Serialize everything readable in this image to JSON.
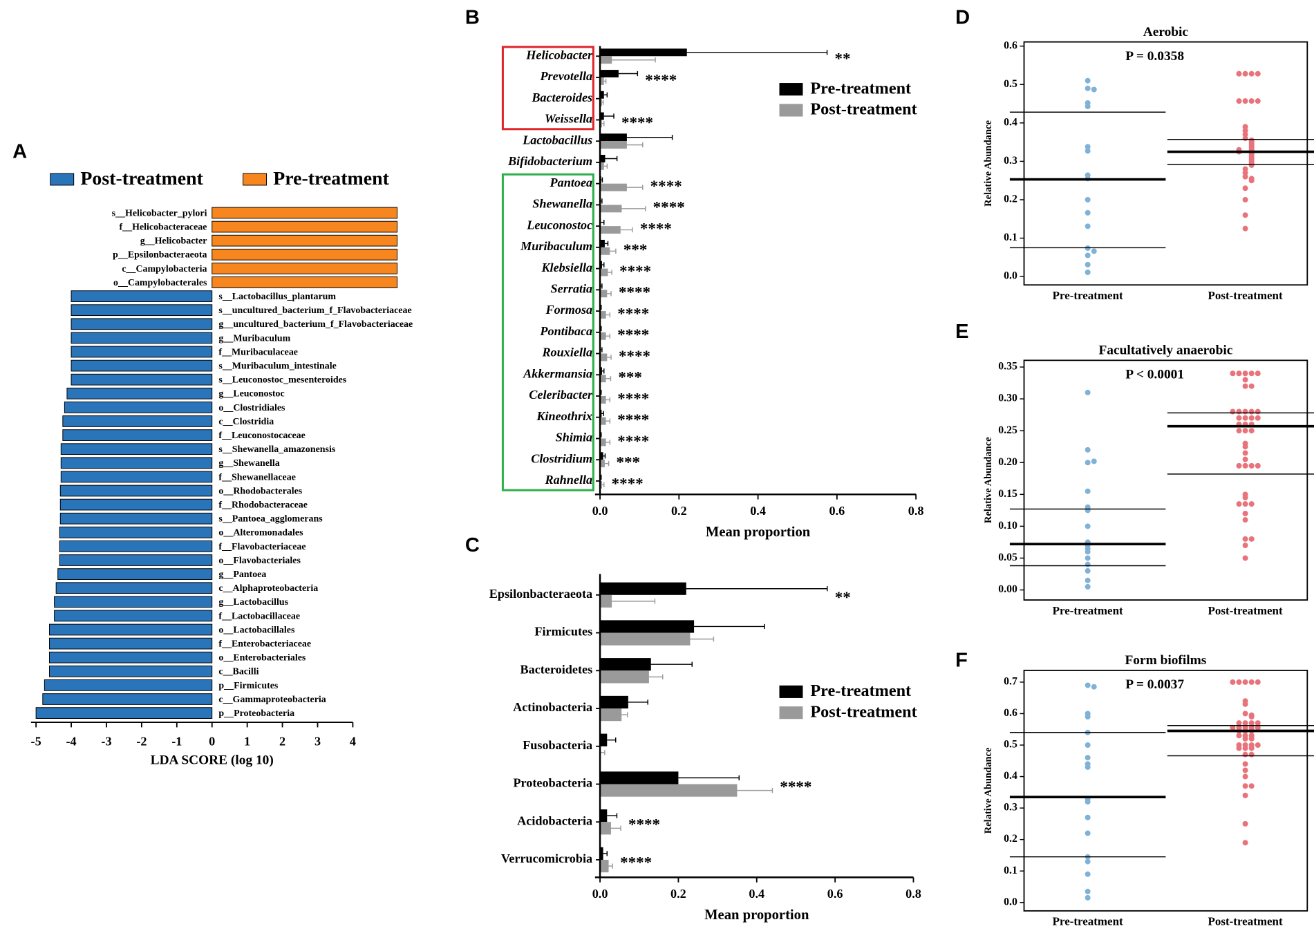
{
  "chart_data": [
    {
      "panel": "A",
      "type": "bar",
      "x_label": "LDA SCORE (log 10)",
      "categories": [
        "s__Helicobacter_pylori",
        "f__Helicobacteraceae",
        "g__Helicobacter",
        "p__Epsilonbacteraeota",
        "c__Campylobacteria",
        "o__Campylobacterales",
        "s__Lactobacillus_plantarum",
        "s__uncultured_bacterium_f_Flavobacteriaceae",
        "g__uncultured_bacterium_f_Flavobacteriaceae",
        "g__Muribaculum",
        "f__Muribaculaceae",
        "s__Muribaculum_intestinale",
        "s__Leuconostoc_mesenteroides",
        "g__Leuconostoc",
        "o__Clostridiales",
        "c__Clostridia",
        "f__Leuconostocaceae",
        "s__Shewanella_amazonensis",
        "g__Shewanella",
        "f__Shewanellaceae",
        "o__Rhodobacterales",
        "f__Rhodobacteraceae",
        "s__Pantoea_agglomerans",
        "o__Alteromonadales",
        "f__Flavobacteriaceae",
        "o__Flavobacteriales",
        "g__Pantoea",
        "c__Alphaproteobacteria",
        "g__Lactobacillus",
        "f__Lactobacillaceae",
        "o__Lactobacillales",
        "f__Enterobacteriaceae",
        "o__Enterobacteriales",
        "c__Bacilli",
        "p__Firmicutes",
        "c__Gammaproteobacteria",
        "p__Proteobacteria"
      ],
      "series": [
        {
          "name": "Post-treatment",
          "color": "#2a74b9",
          "values": [
            null,
            null,
            null,
            null,
            null,
            null,
            -4.0,
            -4.0,
            -4.0,
            -4.0,
            -4.0,
            -4.0,
            -4.0,
            -4.12,
            -4.19,
            -4.24,
            -4.24,
            -4.29,
            -4.29,
            -4.29,
            -4.31,
            -4.31,
            -4.31,
            -4.33,
            -4.33,
            -4.33,
            -4.38,
            -4.43,
            -4.48,
            -4.48,
            -4.62,
            -4.62,
            -4.62,
            -4.62,
            -4.76,
            -4.81,
            -5.0
          ]
        },
        {
          "name": "Pre-treatment",
          "color": "#f7861f",
          "values": [
            5.26,
            5.26,
            5.26,
            5.26,
            5.26,
            5.26,
            null,
            null,
            null,
            null,
            null,
            null,
            null,
            null,
            null,
            null,
            null,
            null,
            null,
            null,
            null,
            null,
            null,
            null,
            null,
            null,
            null,
            null,
            null,
            null,
            null,
            null,
            null,
            null,
            null,
            null,
            null
          ]
        }
      ],
      "xlim": [
        -5,
        4
      ],
      "xticks": [
        -5,
        -4,
        -3,
        -2,
        -1,
        0,
        1,
        2,
        3,
        4
      ]
    },
    {
      "panel": "B",
      "type": "grouped_bar",
      "x_label": "Mean proportion",
      "categories": [
        "Helicobacter",
        "Prevotella",
        "Bacteroides",
        "Weissella",
        "Lactobacillus",
        "Bifidobacterium",
        "Pantoea",
        "Shewanella",
        "Leuconostoc",
        "Muribaculum",
        "Klebsiella",
        "Serratia",
        "Formosa",
        "Pontibaca",
        "Rouxiella",
        "Akkermansia",
        "Celeribacter",
        "Kineothrix",
        "Shimia",
        "Clostridium",
        "Rahnella"
      ],
      "annotations": [
        "**",
        "****",
        null,
        "****",
        null,
        null,
        "****",
        "****",
        "****",
        "***",
        "****",
        "****",
        "****",
        "****",
        "****",
        "***",
        "****",
        "****",
        "****",
        "***",
        "****"
      ],
      "series": [
        {
          "name": "Pre-treatment",
          "color": "#000000",
          "values": [
            0.22,
            0.047,
            0.01,
            0.01,
            0.068,
            0.013,
            0.003,
            0.002,
            0.002,
            0.012,
            0.005,
            0.002,
            0.001,
            0.001,
            0.002,
            0.005,
            0.001,
            0.004,
            0.001,
            0.008,
            0.001
          ],
          "errors": [
            0.355,
            0.048,
            0.008,
            0.025,
            0.115,
            0.03,
            0.003,
            0.003,
            0.008,
            0.008,
            0.005,
            0.003,
            0.002,
            0.002,
            0.003,
            0.005,
            0.002,
            0.005,
            0.002,
            0.005,
            0.002
          ]
        },
        {
          "name": "Post-treatment",
          "color": "#9a9a9a",
          "values": [
            0.03,
            0.01,
            0.005,
            0.005,
            0.068,
            0.01,
            0.068,
            0.055,
            0.052,
            0.025,
            0.02,
            0.018,
            0.015,
            0.015,
            0.018,
            0.015,
            0.015,
            0.015,
            0.015,
            0.012,
            0.005
          ],
          "errors": [
            0.11,
            0.005,
            0.003,
            0.005,
            0.04,
            0.008,
            0.04,
            0.06,
            0.03,
            0.015,
            0.01,
            0.01,
            0.01,
            0.01,
            0.01,
            0.012,
            0.01,
            0.01,
            0.01,
            0.01,
            0.005
          ]
        }
      ],
      "xlim": [
        0,
        0.8
      ],
      "xticks": [
        {
          "value": 0,
          "label": "0.0"
        },
        0.2,
        0.4,
        0.6,
        0.8
      ]
    },
    {
      "panel": "C",
      "type": "grouped_bar",
      "x_label": "Mean proportion",
      "categories": [
        "Epsilonbacteraeota",
        "Firmicutes",
        "Bacteroidetes",
        "Actinobacteria",
        "Fusobacteria",
        "Proteobacteria",
        "Acidobacteria",
        "Verrucomicrobia"
      ],
      "annotations": [
        "**",
        null,
        null,
        null,
        null,
        "****",
        "****",
        "****"
      ],
      "series": [
        {
          "name": "Pre-treatment",
          "color": "#000000",
          "values": [
            0.22,
            0.24,
            0.13,
            0.072,
            0.018,
            0.2,
            0.018,
            0.008
          ],
          "errors": [
            0.36,
            0.18,
            0.105,
            0.05,
            0.022,
            0.155,
            0.025,
            0.01
          ]
        },
        {
          "name": "Post-treatment",
          "color": "#9a9a9a",
          "values": [
            0.03,
            0.23,
            0.125,
            0.055,
            0.002,
            0.35,
            0.028,
            0.022
          ],
          "errors": [
            0.11,
            0.06,
            0.035,
            0.015,
            0.01,
            0.09,
            0.025,
            0.01
          ]
        }
      ],
      "xlim": [
        0,
        0.8
      ],
      "xticks": [
        {
          "value": 0,
          "label": "0.0"
        },
        0.2,
        0.4,
        0.6,
        0.8
      ]
    },
    {
      "panel": "D",
      "type": "strip",
      "title": "Aerobic",
      "annotation": "P = 0.0358",
      "y_label": "Relative Abundance",
      "categories": [
        "Pre-treatment",
        "Post-treatment"
      ],
      "ylim": [
        0,
        0.6
      ],
      "yticks": [
        {
          "value": 0,
          "label": "0.0"
        },
        0.1,
        0.2,
        0.3,
        0.4,
        0.5,
        0.6
      ],
      "series": [
        {
          "color": "#7fb2d6",
          "values": [
            0.51,
            0.49,
            0.487,
            0.452,
            0.443,
            0.338,
            0.327,
            0.264,
            0.255,
            0.2,
            0.166,
            0.131,
            0.074,
            0.066,
            0.055,
            0.031,
            0.011
          ],
          "mean": 0.253,
          "upper": 0.428,
          "lower": 0.075
        },
        {
          "color": "#e8737b",
          "values": [
            0.528,
            0.528,
            0.528,
            0.528,
            0.457,
            0.457,
            0.457,
            0.457,
            0.39,
            0.38,
            0.37,
            0.36,
            0.355,
            0.35,
            0.345,
            0.34,
            0.335,
            0.33,
            0.33,
            0.325,
            0.32,
            0.315,
            0.31,
            0.305,
            0.3,
            0.295,
            0.29,
            0.28,
            0.27,
            0.26,
            0.255,
            0.25,
            0.23,
            0.2,
            0.16,
            0.125
          ],
          "mean": 0.325,
          "upper": 0.357,
          "lower": 0.292
        }
      ]
    },
    {
      "panel": "E",
      "type": "strip",
      "title": "Facultatively anaerobic",
      "annotation": "P < 0.0001",
      "y_label": "Relative Abundance",
      "categories": [
        "Pre-treatment",
        "Post-treatment"
      ],
      "ylim": [
        0,
        0.35
      ],
      "yticks": [
        {
          "value": 0,
          "label": "0.00"
        },
        0.05,
        {
          "value": 0.1,
          "label": "0.10"
        },
        0.15,
        {
          "value": 0.2,
          "label": "0.20"
        },
        0.25,
        {
          "value": 0.3,
          "label": "0.30"
        },
        0.35
      ],
      "series": [
        {
          "color": "#7fb2d6",
          "values": [
            0.31,
            0.22,
            0.2,
            0.202,
            0.155,
            0.13,
            0.125,
            0.1,
            0.075,
            0.07,
            0.065,
            0.06,
            0.05,
            0.04,
            0.03,
            0.015,
            0.005
          ],
          "mean": 0.072,
          "upper": 0.127,
          "lower": 0.038
        },
        {
          "color": "#e8737b",
          "values": [
            0.34,
            0.34,
            0.34,
            0.34,
            0.34,
            0.33,
            0.32,
            0.32,
            0.28,
            0.28,
            0.28,
            0.28,
            0.28,
            0.27,
            0.27,
            0.27,
            0.27,
            0.26,
            0.26,
            0.26,
            0.25,
            0.25,
            0.25,
            0.23,
            0.225,
            0.215,
            0.205,
            0.195,
            0.195,
            0.195,
            0.195,
            0.15,
            0.145,
            0.135,
            0.135,
            0.135,
            0.12,
            0.11,
            0.08,
            0.08,
            0.07,
            0.05
          ],
          "mean": 0.257,
          "upper": 0.278,
          "lower": 0.182
        }
      ]
    },
    {
      "panel": "F",
      "type": "strip",
      "title": "Form biofilms",
      "annotation": "P = 0.0037",
      "y_label": "Relative Abundance",
      "categories": [
        "Pre-treatment",
        "Post-treatment"
      ],
      "ylim": [
        0,
        0.7
      ],
      "yticks": [
        {
          "value": 0,
          "label": "0.0"
        },
        0.1,
        0.2,
        0.3,
        0.4,
        0.5,
        0.6,
        0.7
      ],
      "series": [
        {
          "color": "#7fb2d6",
          "values": [
            0.69,
            0.685,
            0.6,
            0.59,
            0.54,
            0.5,
            0.46,
            0.44,
            0.43,
            0.33,
            0.32,
            0.27,
            0.22,
            0.145,
            0.13,
            0.09,
            0.035,
            0.015
          ],
          "mean": 0.335,
          "upper": 0.54,
          "lower": 0.145
        },
        {
          "color": "#e8737b",
          "values": [
            0.7,
            0.7,
            0.7,
            0.7,
            0.7,
            0.64,
            0.63,
            0.6,
            0.595,
            0.59,
            0.57,
            0.57,
            0.57,
            0.57,
            0.555,
            0.555,
            0.555,
            0.555,
            0.555,
            0.545,
            0.545,
            0.545,
            0.53,
            0.53,
            0.53,
            0.52,
            0.52,
            0.5,
            0.5,
            0.5,
            0.5,
            0.49,
            0.49,
            0.49,
            0.47,
            0.47,
            0.44,
            0.42,
            0.4,
            0.37,
            0.37,
            0.34,
            0.25,
            0.19
          ],
          "mean": 0.545,
          "upper": 0.562,
          "lower": 0.466
        }
      ]
    }
  ]
}
